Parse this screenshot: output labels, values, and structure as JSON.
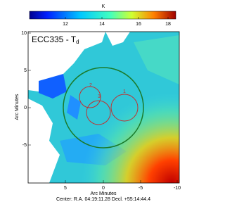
{
  "colorbar": {
    "label": "K",
    "ticks": [
      "12",
      "14",
      "16",
      "18"
    ]
  },
  "title": {
    "name": "ECC335 - T",
    "subscript": "d"
  },
  "y_axis": {
    "label": "Arc Minutes",
    "ticks": [
      "10",
      "5",
      "0",
      "-5"
    ]
  },
  "x_axis": {
    "label": "Arc Minutes",
    "ticks": [
      "5",
      "0",
      "-5",
      "-10"
    ]
  },
  "footer": "Center: R.A. 04:19:11.28  Decl. +55:14:44.4",
  "regions": [
    "1",
    "2",
    "3"
  ]
}
